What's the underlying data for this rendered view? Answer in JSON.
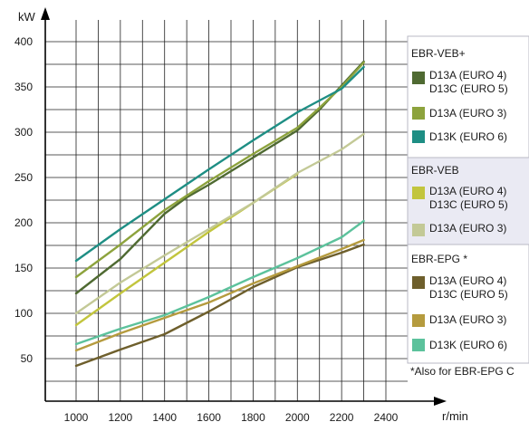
{
  "chart_data": {
    "type": "line",
    "title": "",
    "xlabel": "r/min",
    "ylabel": "kW",
    "x_ticks": [
      "1000",
      "1200",
      "1400",
      "1600",
      "1800",
      "2000",
      "2200",
      "2400"
    ],
    "y_ticks": [
      "50",
      "100",
      "150",
      "200",
      "250",
      "300",
      "350",
      "400"
    ],
    "xlim": [
      1000,
      2400
    ],
    "ylim": [
      50,
      400
    ],
    "grid": true,
    "legend_position": "right",
    "legend_groups": [
      {
        "title": "EBR-VEB+",
        "entries": [
          {
            "lines": [
              "D13A  (EURO 4)",
              "D13C (EURO 5)"
            ],
            "color": "#4f6a32",
            "series": 0
          },
          {
            "lines": [
              "D13A   (EURO 3)"
            ],
            "color": "#8da33d",
            "series": 1
          },
          {
            "lines": [
              "D13K  (EURO 6)"
            ],
            "color": "#1e8e84",
            "series": 2
          }
        ]
      },
      {
        "title": "EBR-VEB",
        "entries": [
          {
            "lines": [
              "D13A  (EURO 4)",
              "D13C (EURO 5)"
            ],
            "color": "#c2c53d",
            "series": 3
          },
          {
            "lines": [
              "D13A   (EURO 3)"
            ],
            "color": "#c3c996",
            "series": 4
          }
        ]
      },
      {
        "title": "EBR-EPG *",
        "entries": [
          {
            "lines": [
              "D13A  (EURO 4)",
              "D13C  (EURO 5)"
            ],
            "color": "#6e5f2c",
            "series": 5
          },
          {
            "lines": [
              "D13A  (EURO 3)"
            ],
            "color": "#b59b3e",
            "series": 6
          },
          {
            "lines": [
              "D13K  (EURO 6)"
            ],
            "color": "#5cc29c",
            "series": 7
          }
        ]
      }
    ],
    "footnote": "*Also for EBR-EPG  C",
    "series": [
      {
        "color": "#4f6a32",
        "x": [
          1000,
          1200,
          1400,
          1500,
          1600,
          1800,
          2000,
          2100,
          2300
        ],
        "y": [
          122,
          160,
          210,
          228,
          242,
          272,
          302,
          325,
          378
        ]
      },
      {
        "color": "#8da33d",
        "x": [
          1000,
          1200,
          1400,
          1600,
          1800,
          2000,
          2100,
          2200,
          2300
        ],
        "y": [
          140,
          176,
          214,
          246,
          276,
          305,
          327,
          350,
          377
        ]
      },
      {
        "color": "#1e8e84",
        "x": [
          1000,
          1200,
          1400,
          1600,
          1800,
          2000,
          2200,
          2300
        ],
        "y": [
          158,
          193,
          226,
          259,
          291,
          322,
          348,
          372
        ]
      },
      {
        "color": "#c2c53d",
        "x": [
          1000,
          1200,
          1400,
          1600,
          1800,
          2000
        ],
        "y": [
          87,
          122,
          156,
          190,
          222,
          254
        ]
      },
      {
        "color": "#c3c996",
        "x": [
          1000,
          1200,
          1400,
          1600,
          1800,
          2000,
          2200,
          2300
        ],
        "y": [
          100,
          134,
          164,
          193,
          222,
          255,
          281,
          298
        ]
      },
      {
        "color": "#6e5f2c",
        "x": [
          1000,
          1200,
          1400,
          1600,
          1800,
          2000,
          2200,
          2300
        ],
        "y": [
          42,
          60,
          77,
          102,
          129,
          151,
          167,
          176
        ]
      },
      {
        "color": "#b59b3e",
        "x": [
          1000,
          1200,
          1400,
          1600,
          1800,
          2000,
          2200,
          2300
        ],
        "y": [
          59,
          78,
          95,
          112,
          133,
          152,
          171,
          181
        ]
      },
      {
        "color": "#5cc29c",
        "x": [
          1000,
          1200,
          1400,
          1600,
          1800,
          2000,
          2200,
          2300
        ],
        "y": [
          66,
          83,
          98,
          118,
          140,
          161,
          184,
          202
        ]
      }
    ]
  }
}
